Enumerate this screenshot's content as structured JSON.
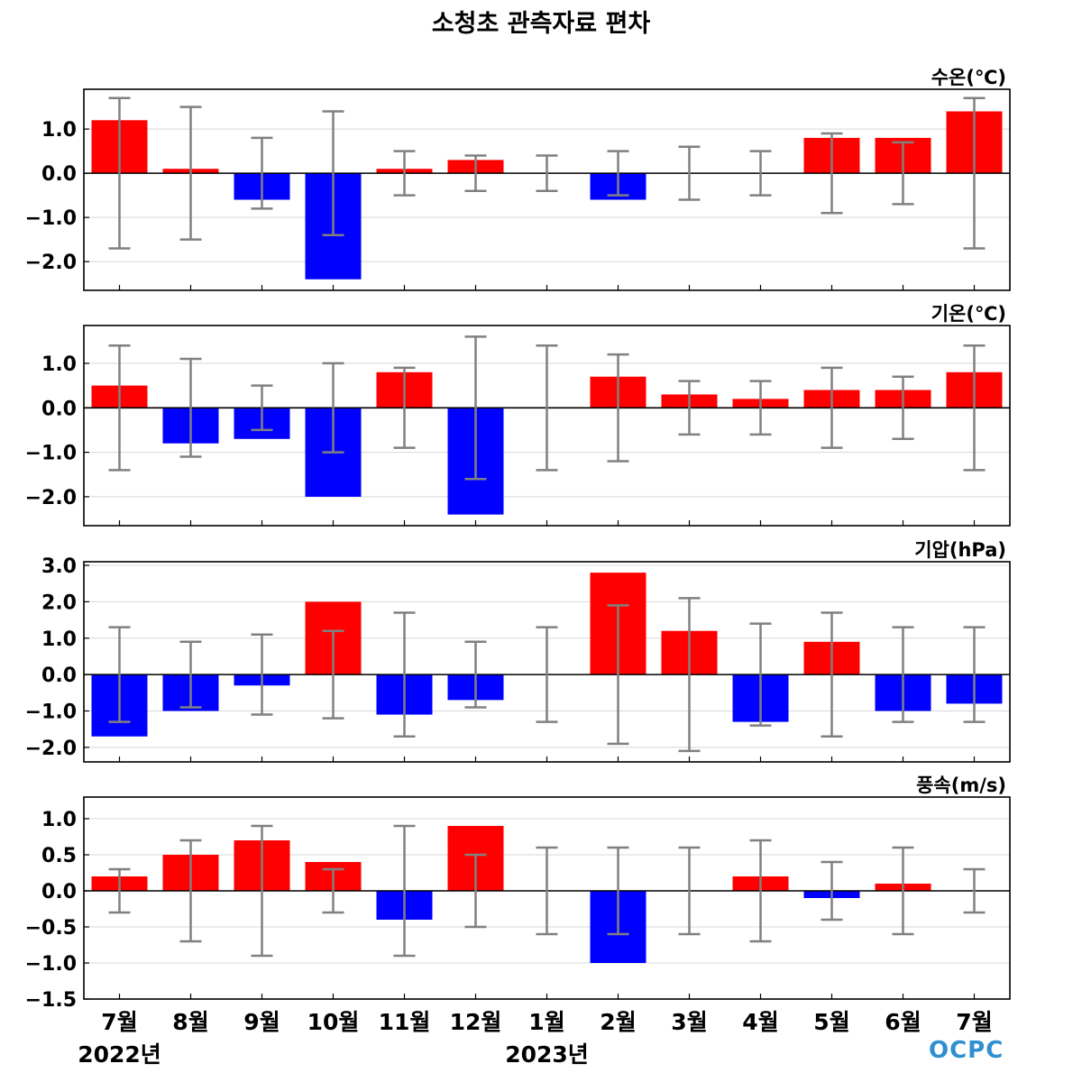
{
  "title": "소청초 관측자료 편차",
  "logo_text": "OCPC",
  "colors": {
    "positive": "#ff0000",
    "negative": "#0000ff",
    "error_bar": "#808080",
    "grid": "#d8d8d8"
  },
  "chart_data": {
    "type": "bar",
    "categories": [
      "7월",
      "8월",
      "9월",
      "10월",
      "11월",
      "12월",
      "1월",
      "2월",
      "3월",
      "4월",
      "5월",
      "6월",
      "7월"
    ],
    "year_labels": [
      {
        "label": "2022년",
        "category_index": 0
      },
      {
        "label": "2023년",
        "category_index": 6
      }
    ],
    "panels": [
      {
        "name": "수온(℃)",
        "ylim": [
          -2.65,
          1.9
        ],
        "yticks": [
          1.0,
          0.0,
          -1.0,
          -2.0
        ],
        "ytick_labels": [
          "1.0",
          "0.0",
          "−1.0",
          "−2.0"
        ],
        "values": [
          1.2,
          0.1,
          -0.6,
          -2.4,
          0.1,
          0.3,
          0.0,
          -0.6,
          0.0,
          0.0,
          0.8,
          0.8,
          1.4
        ],
        "error_range": [
          [
            -1.7,
            1.7
          ],
          [
            -1.5,
            1.5
          ],
          [
            -0.8,
            0.8
          ],
          [
            -1.4,
            1.4
          ],
          [
            -0.5,
            0.5
          ],
          [
            -0.4,
            0.4
          ],
          [
            -0.4,
            0.4
          ],
          [
            -0.5,
            0.5
          ],
          [
            -0.6,
            0.6
          ],
          [
            -0.5,
            0.5
          ],
          [
            -0.9,
            0.9
          ],
          [
            -0.7,
            0.7
          ],
          [
            -1.7,
            1.7
          ]
        ]
      },
      {
        "name": "기온(℃)",
        "ylim": [
          -2.65,
          1.85
        ],
        "yticks": [
          1.0,
          0.0,
          -1.0,
          -2.0
        ],
        "ytick_labels": [
          "1.0",
          "0.0",
          "−1.0",
          "−2.0"
        ],
        "values": [
          0.5,
          -0.8,
          -0.7,
          -2.0,
          0.8,
          -2.4,
          0.0,
          0.7,
          0.3,
          0.2,
          0.4,
          0.4,
          0.8
        ],
        "error_range": [
          [
            -1.4,
            1.4
          ],
          [
            -1.1,
            1.1
          ],
          [
            -0.5,
            0.5
          ],
          [
            -1.0,
            1.0
          ],
          [
            -0.9,
            0.9
          ],
          [
            -1.6,
            1.6
          ],
          [
            -1.4,
            1.4
          ],
          [
            -1.2,
            1.2
          ],
          [
            -0.6,
            0.6
          ],
          [
            -0.6,
            0.6
          ],
          [
            -0.9,
            0.9
          ],
          [
            -0.7,
            0.7
          ],
          [
            -1.4,
            1.4
          ]
        ]
      },
      {
        "name": "기압(hPa)",
        "ylim": [
          -2.4,
          3.1
        ],
        "yticks": [
          3.0,
          2.0,
          1.0,
          0.0,
          -1.0,
          -2.0
        ],
        "ytick_labels": [
          "3.0",
          "2.0",
          "1.0",
          "0.0",
          "−1.0",
          "−2.0"
        ],
        "values": [
          -1.7,
          -1.0,
          -0.3,
          2.0,
          -1.1,
          -0.7,
          0.0,
          2.8,
          1.2,
          -1.3,
          0.9,
          -1.0,
          -0.8
        ],
        "error_range": [
          [
            -1.3,
            1.3
          ],
          [
            -0.9,
            0.9
          ],
          [
            -1.1,
            1.1
          ],
          [
            -1.2,
            1.2
          ],
          [
            -1.7,
            1.7
          ],
          [
            -0.9,
            0.9
          ],
          [
            -1.3,
            1.3
          ],
          [
            -1.9,
            1.9
          ],
          [
            -2.1,
            2.1
          ],
          [
            -1.4,
            1.4
          ],
          [
            -1.7,
            1.7
          ],
          [
            -1.3,
            1.3
          ],
          [
            -1.3,
            1.3
          ]
        ]
      },
      {
        "name": "풍속(m/s)",
        "ylim": [
          -1.5,
          1.3
        ],
        "yticks": [
          1.0,
          0.5,
          0.0,
          -0.5,
          -1.0,
          -1.5
        ],
        "ytick_labels": [
          "1.0",
          "0.5",
          "0.0",
          "−0.5",
          "−1.0",
          "−1.5"
        ],
        "values": [
          0.2,
          0.5,
          0.7,
          0.4,
          -0.4,
          0.9,
          0.0,
          -1.0,
          0.0,
          0.2,
          -0.1,
          0.1,
          0.0
        ],
        "error_range": [
          [
            -0.3,
            0.3
          ],
          [
            -0.7,
            0.7
          ],
          [
            -0.9,
            0.9
          ],
          [
            -0.3,
            0.3
          ],
          [
            -0.9,
            0.9
          ],
          [
            -0.5,
            0.5
          ],
          [
            -0.6,
            0.6
          ],
          [
            -0.6,
            0.6
          ],
          [
            -0.6,
            0.6
          ],
          [
            -0.7,
            0.7
          ],
          [
            -0.4,
            0.4
          ],
          [
            -0.6,
            0.6
          ],
          [
            -0.3,
            0.3
          ]
        ]
      }
    ],
    "grid": true,
    "zero_line": true
  }
}
